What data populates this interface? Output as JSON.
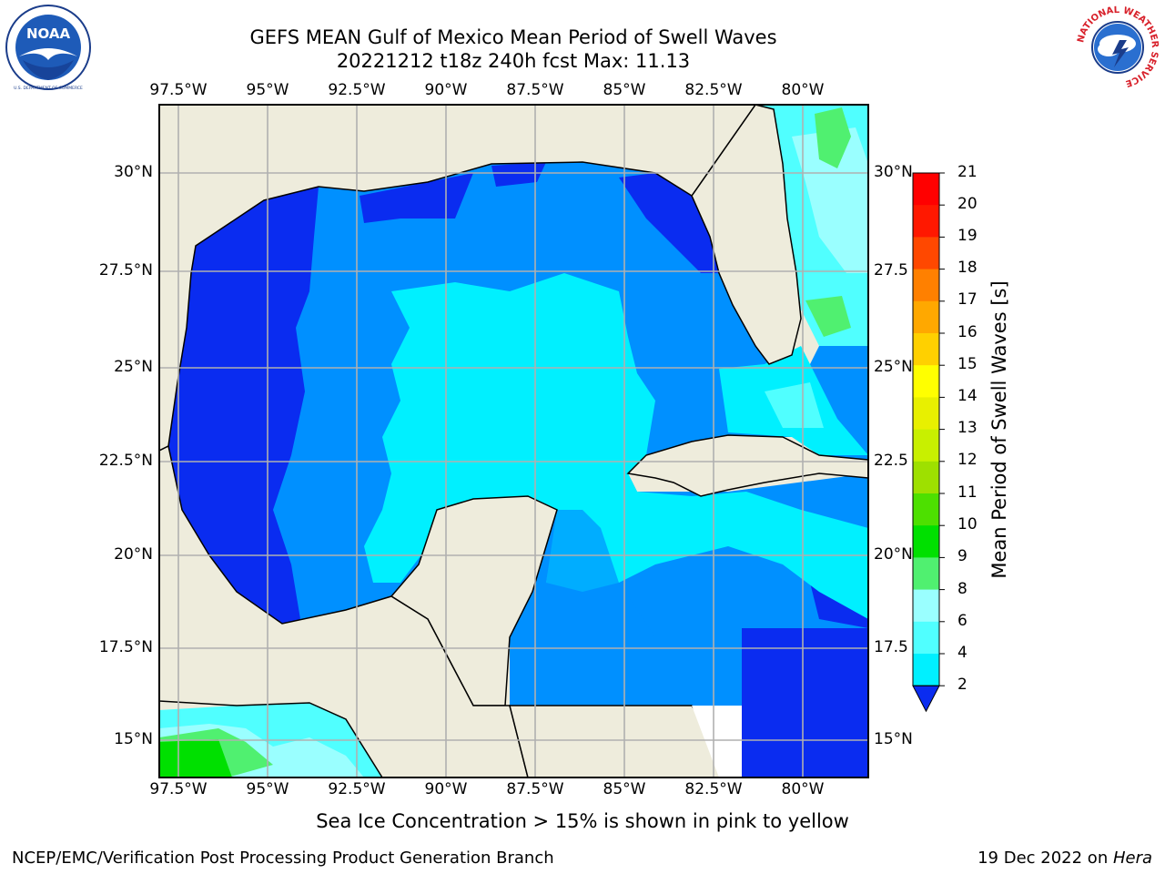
{
  "header": {
    "title_line1": "GEFS MEAN Gulf of Mexico Mean Period of Swell Waves",
    "title_line2": "20221212 t18z 240h fcst   Max: 11.13"
  },
  "logos": {
    "left": {
      "name": "NOAA",
      "ring_text": "NATIONAL OCEANIC AND ATMOSPHERIC ADMINISTRATION · U.S. DEPARTMENT OF COMMERCE"
    },
    "right": {
      "name": "National Weather Service",
      "ring_text": "NATIONAL WEATHER SERVICE"
    }
  },
  "map": {
    "lon_labels": [
      "97.5°W",
      "95°W",
      "92.5°W",
      "90°W",
      "87.5°W",
      "85°W",
      "82.5°W",
      "80°W"
    ],
    "lat_labels_left": [
      "30°N",
      "27.5°N",
      "25°N",
      "22.5°N",
      "20°N",
      "17.5°N",
      "15°N"
    ],
    "lat_labels_right": [
      "30°N",
      "27.5",
      "25°N",
      "22.5",
      "20°N",
      "17.5",
      "15°N"
    ],
    "land_color": "#eeecdc",
    "grid_color": "#b0b0b0"
  },
  "colorbar": {
    "label": "Mean Period of Swell Waves [s]",
    "ticks": [
      "2",
      "4",
      "6",
      "8",
      "9",
      "10",
      "11",
      "12",
      "13",
      "14",
      "15",
      "16",
      "17",
      "18",
      "19",
      "20",
      "21"
    ],
    "colors": [
      "#0a2cf0",
      "#0090ff",
      "#00f0ff",
      "#50ffff",
      "#9affff",
      "#50f070",
      "#00e000",
      "#4de000",
      "#9ee000",
      "#c8f000",
      "#e8f000",
      "#ffff00",
      "#ffd000",
      "#ffa800",
      "#ff8000",
      "#ff4800",
      "#ff1800",
      "#ff0000"
    ]
  },
  "subtitle": "Sea Ice Concentration > 15% is shown in pink to yellow",
  "footer": {
    "left": "NCEP/EMC/Verification Post Processing Product Generation Branch",
    "right_prefix": "19 Dec 2022 on ",
    "right_host": "Hera"
  }
}
